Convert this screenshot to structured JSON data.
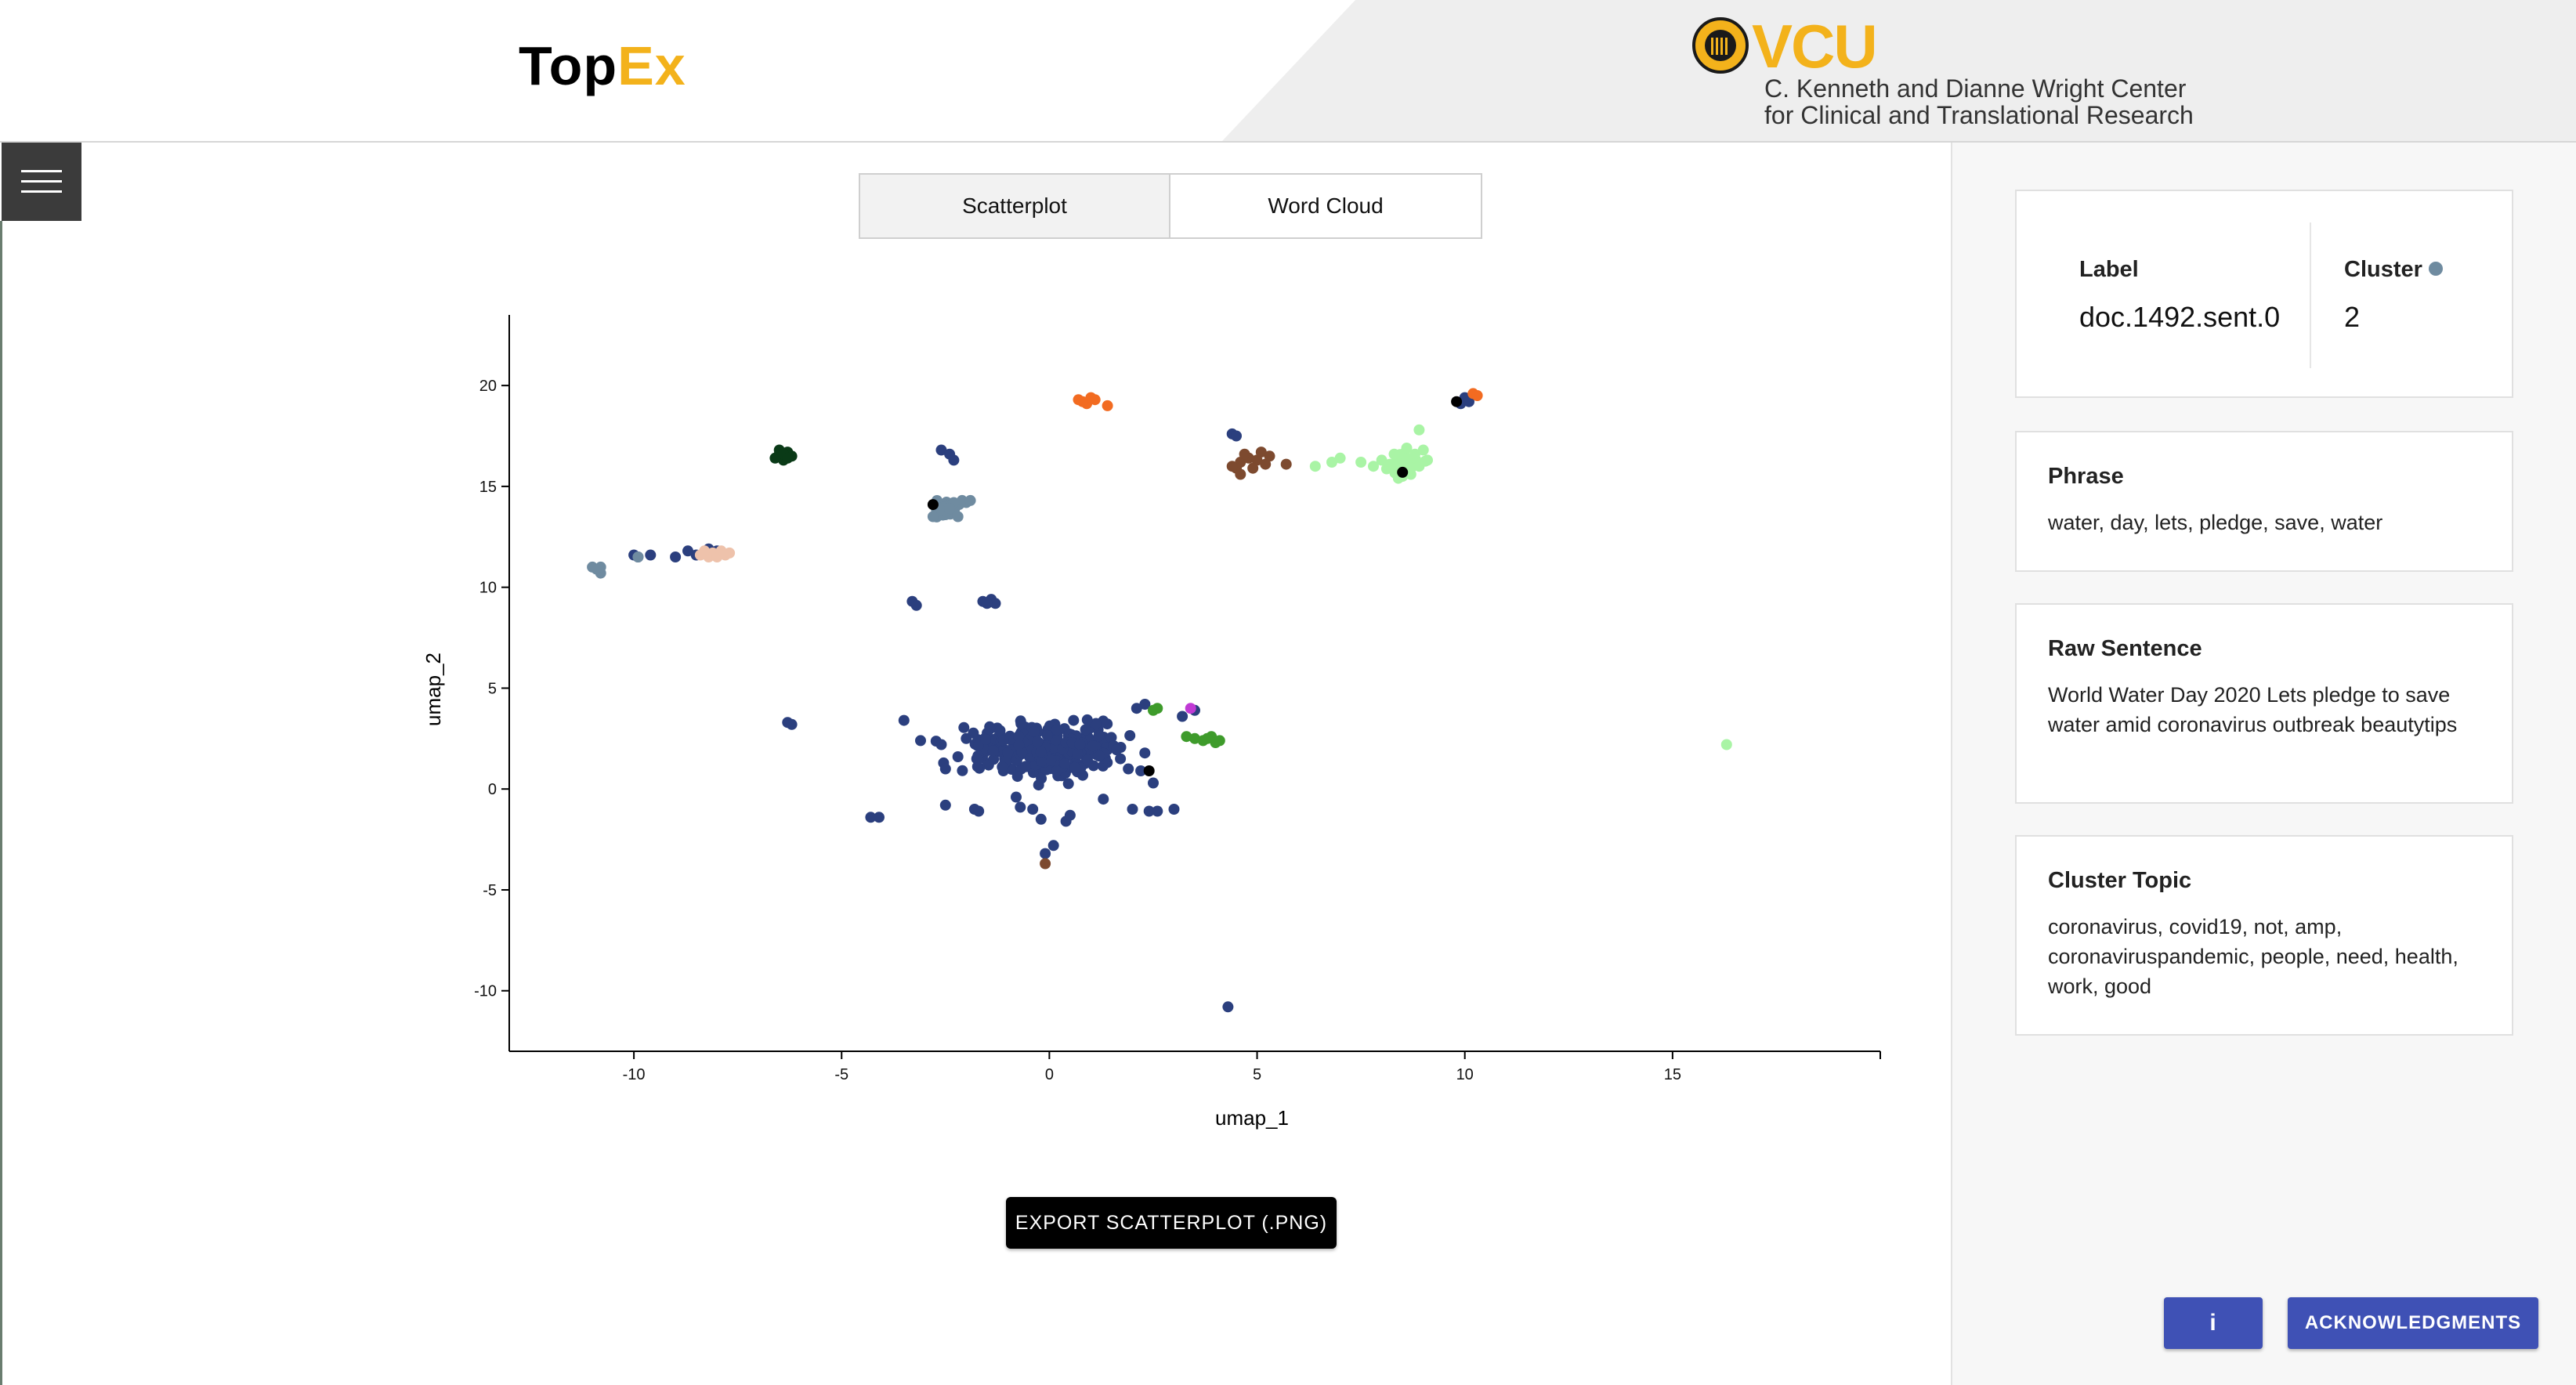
{
  "header": {
    "logo_part1": "Top",
    "logo_part2": "Ex",
    "vcu_word": "VCU",
    "center_line1": "C. Kenneth and Dianne Wright Center",
    "center_line2": "for Clinical and Translational Research",
    "accent_color": "#f3b21b",
    "menu_icon": "hamburger-menu-icon"
  },
  "tabs": [
    {
      "label": "Scatterplot",
      "active": true
    },
    {
      "label": "Word Cloud",
      "active": false
    }
  ],
  "chart_data": {
    "type": "scatter",
    "xlabel": "umap_1",
    "ylabel": "umap_2",
    "xlim": [
      -13,
      20
    ],
    "ylim": [
      -13,
      23.5
    ],
    "xticks": [
      -10,
      -5,
      0,
      5,
      10,
      15
    ],
    "yticks": [
      -10,
      -5,
      0,
      5,
      10,
      15,
      20
    ],
    "grid": false,
    "clusters": [
      {
        "color": "#2b3f7e",
        "gen": "ball",
        "center": [
          0,
          2
        ],
        "spread": [
          1.7,
          1.1
        ],
        "n": 280
      },
      {
        "color": "#2b3f7e",
        "points": [
          [
            -9.6,
            11.6
          ],
          [
            -9.9,
            11.5
          ],
          [
            -10.0,
            11.6
          ],
          [
            -8.5,
            11.6
          ],
          [
            -8.7,
            11.8
          ],
          [
            -9.0,
            11.5
          ],
          [
            -8.2,
            11.9
          ],
          [
            -8.0,
            11.8
          ],
          [
            -3.3,
            9.3
          ],
          [
            -3.2,
            9.1
          ],
          [
            -1.6,
            9.3
          ],
          [
            -1.4,
            9.4
          ],
          [
            -1.3,
            9.2
          ],
          [
            -1.5,
            9.2
          ],
          [
            -2.6,
            16.8
          ],
          [
            -2.4,
            16.6
          ],
          [
            -2.3,
            16.3
          ],
          [
            4.4,
            17.6
          ],
          [
            4.5,
            17.5
          ],
          [
            -6.3,
            3.3
          ],
          [
            -6.2,
            3.2
          ],
          [
            -4.3,
            -1.4
          ],
          [
            -4.1,
            -1.4
          ],
          [
            -3.5,
            3.4
          ],
          [
            -3.1,
            2.4
          ],
          [
            -2.6,
            2.2
          ],
          [
            -2.5,
            1.0
          ],
          [
            -1.8,
            -1.0
          ],
          [
            -1.7,
            -1.1
          ],
          [
            -2.5,
            -0.8
          ],
          [
            -0.7,
            -0.9
          ],
          [
            -0.4,
            -1.0
          ],
          [
            -0.2,
            -1.5
          ],
          [
            0.5,
            -1.3
          ],
          [
            0.4,
            -1.6
          ],
          [
            0.1,
            -2.8
          ],
          [
            -0.1,
            -3.2
          ],
          [
            2.0,
            -1.0
          ],
          [
            2.4,
            -1.1
          ],
          [
            2.6,
            -1.1
          ],
          [
            3.0,
            -1.0
          ],
          [
            1.3,
            -0.5
          ],
          [
            4.3,
            -10.8
          ],
          [
            2.2,
            0.9
          ],
          [
            1.9,
            1.0
          ],
          [
            2.5,
            0.3
          ],
          [
            -2.0,
            2.5
          ],
          [
            -2.2,
            1.6
          ],
          [
            -0.8,
            -0.4
          ],
          [
            3.2,
            3.6
          ],
          [
            3.5,
            3.9
          ],
          [
            2.3,
            4.2
          ],
          [
            2.1,
            4.0
          ],
          [
            10.0,
            19.4
          ],
          [
            9.9,
            19.1
          ],
          [
            10.1,
            19.2
          ]
        ]
      },
      {
        "color": "#6f8ba0",
        "points": [
          [
            -10.9,
            10.9
          ],
          [
            -10.8,
            10.7
          ],
          [
            -11.0,
            11.0
          ],
          [
            -10.8,
            11.0
          ],
          [
            -9.9,
            11.5
          ],
          [
            -2.7,
            14.0
          ],
          [
            -2.5,
            13.6
          ],
          [
            -2.3,
            14.2
          ],
          [
            -2.6,
            13.8
          ],
          [
            -2.1,
            14.3
          ],
          [
            -2.0,
            14.2
          ],
          [
            -2.4,
            13.9
          ],
          [
            -2.8,
            13.5
          ],
          [
            -2.2,
            13.5
          ],
          [
            -1.9,
            14.3
          ]
        ],
        "gen": "ball",
        "center": [
          -2.5,
          13.9
        ],
        "spread": [
          0.35,
          0.35
        ],
        "n": 20
      },
      {
        "color": "#eec2ab",
        "points": [
          [
            -8.4,
            11.6
          ],
          [
            -8.2,
            11.5
          ],
          [
            -8.1,
            11.7
          ],
          [
            -8.0,
            11.5
          ],
          [
            -7.9,
            11.8
          ],
          [
            -7.8,
            11.6
          ],
          [
            -8.3,
            11.8
          ],
          [
            -7.7,
            11.7
          ]
        ]
      },
      {
        "color": "#0a3a17",
        "points": [
          [
            -6.5,
            16.6
          ],
          [
            -6.4,
            16.3
          ],
          [
            -6.3,
            16.7
          ],
          [
            -6.6,
            16.4
          ],
          [
            -6.2,
            16.5
          ],
          [
            -6.5,
            16.8
          ],
          [
            -6.4,
            16.6
          ],
          [
            -6.3,
            16.4
          ]
        ]
      },
      {
        "color": "#f26b21",
        "points": [
          [
            0.7,
            19.3
          ],
          [
            0.9,
            19.1
          ],
          [
            1.0,
            19.4
          ],
          [
            0.8,
            19.2
          ],
          [
            1.1,
            19.3
          ],
          [
            1.4,
            19.0
          ],
          [
            10.2,
            19.6
          ],
          [
            10.3,
            19.5
          ]
        ]
      },
      {
        "color": "#7d4a2f",
        "points": [
          [
            4.6,
            16.2
          ],
          [
            4.8,
            16.4
          ],
          [
            4.5,
            15.9
          ],
          [
            4.7,
            16.6
          ],
          [
            5.0,
            16.3
          ],
          [
            5.2,
            16.1
          ],
          [
            4.6,
            15.6
          ],
          [
            4.9,
            15.9
          ],
          [
            5.3,
            16.5
          ],
          [
            5.7,
            16.1
          ],
          [
            4.4,
            16.0
          ],
          [
            5.1,
            16.7
          ],
          [
            -0.1,
            -3.7
          ]
        ]
      },
      {
        "color": "#a9f4a5",
        "points": [
          [
            6.4,
            16.0
          ],
          [
            6.8,
            16.2
          ],
          [
            7.0,
            16.4
          ],
          [
            7.5,
            16.2
          ],
          [
            7.8,
            16.0
          ],
          [
            8.0,
            16.3
          ],
          [
            8.2,
            16.1
          ],
          [
            8.4,
            15.8
          ],
          [
            8.6,
            16.4
          ],
          [
            8.7,
            15.6
          ],
          [
            8.8,
            16.6
          ],
          [
            8.9,
            16.0
          ],
          [
            9.0,
            16.8
          ],
          [
            8.5,
            15.5
          ],
          [
            8.9,
            17.8
          ],
          [
            8.3,
            16.6
          ],
          [
            8.6,
            16.9
          ],
          [
            8.7,
            15.9
          ],
          [
            9.1,
            16.3
          ],
          [
            8.4,
            15.4
          ],
          [
            16.3,
            2.2
          ]
        ],
        "gen": "ball",
        "center": [
          8.6,
          16.2
        ],
        "spread": [
          0.35,
          0.45
        ],
        "n": 20
      },
      {
        "color": "#3e9b2b",
        "points": [
          [
            3.3,
            2.6
          ],
          [
            3.5,
            2.5
          ],
          [
            3.7,
            2.4
          ],
          [
            3.9,
            2.6
          ],
          [
            4.0,
            2.3
          ],
          [
            4.1,
            2.4
          ],
          [
            3.8,
            2.5
          ],
          [
            2.5,
            3.9
          ],
          [
            2.6,
            4.0
          ]
        ]
      },
      {
        "color": "#c03ad4",
        "points": [
          [
            3.4,
            4.0
          ]
        ]
      },
      {
        "color": "#000000",
        "points": [
          [
            -2.8,
            14.1
          ],
          [
            2.4,
            0.9
          ],
          [
            9.8,
            19.2
          ],
          [
            8.5,
            15.7
          ]
        ]
      }
    ]
  },
  "export_button": {
    "label": "EXPORT SCATTERPLOT (.PNG)"
  },
  "details": {
    "label_title": "Label",
    "label_value": "doc.1492.sent.0",
    "cluster_title": "Cluster",
    "cluster_color": "#6f8ba0",
    "cluster_value": "2",
    "phrase_title": "Phrase",
    "phrase_text": "water, day, lets, pledge, save, water",
    "raw_title": "Raw Sentence",
    "raw_text": "World Water Day 2020 Lets pledge to save water amid coronavirus outbreak beautytips",
    "topic_title": "Cluster Topic",
    "topic_text": "coronavirus, covid19, not, amp, coronaviruspandemic, people, need, health, work, good"
  },
  "buttons": {
    "info_label": "i",
    "ack_label": "ACKNOWLEDGMENTS"
  }
}
